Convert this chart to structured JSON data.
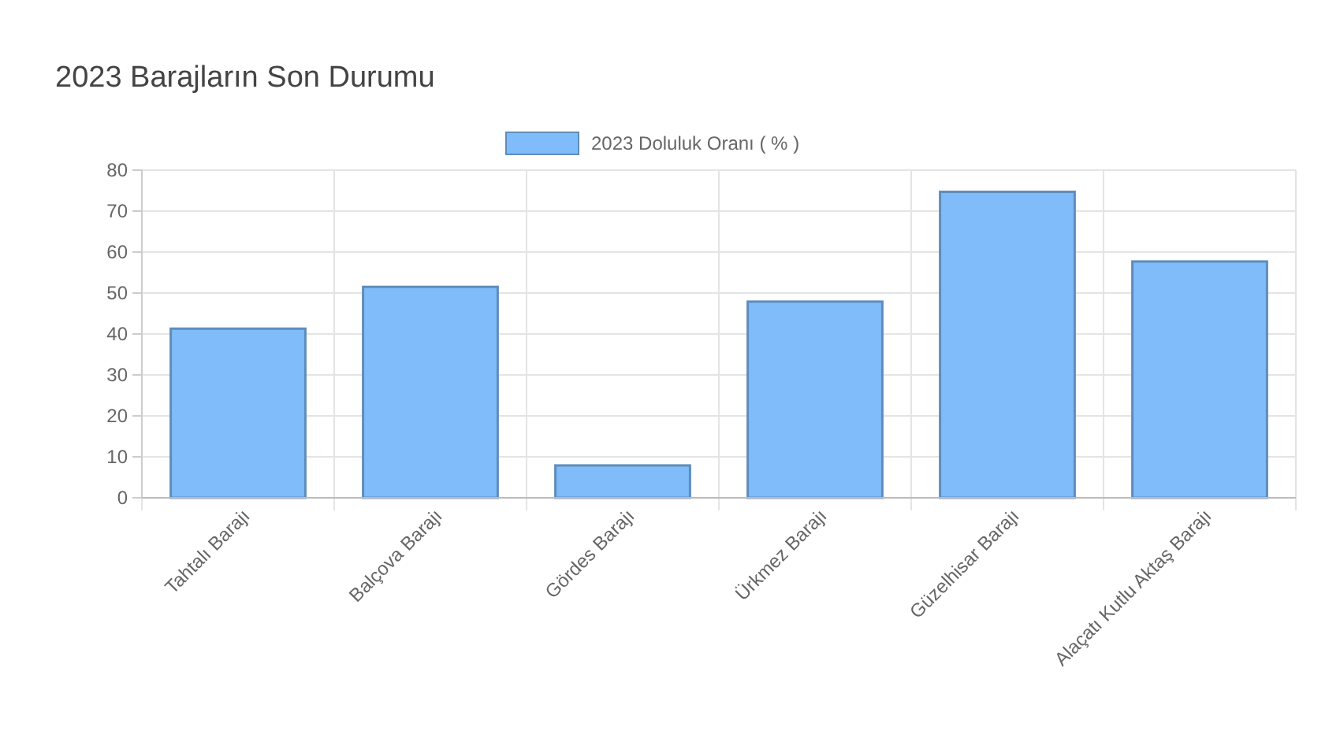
{
  "chart_data": {
    "type": "bar",
    "title": "2023 Barajların Son Durumu",
    "categories": [
      "Tahtalı Barajı",
      "Balçova Barajı",
      "Gördes Barajı",
      "Ürkmez Barajı",
      "Güzelhisar Barajı",
      "Alaçatı Kutlu Aktaş Barajı"
    ],
    "series": [
      {
        "name": "2023 Doluluk Oranı ( % )",
        "color": "#7fbcf9",
        "values": [
          41.3,
          51.5,
          7.9,
          47.9,
          74.7,
          57.7
        ]
      }
    ],
    "ylim": [
      0,
      80
    ],
    "yticks": [
      0,
      10,
      20,
      30,
      40,
      50,
      60,
      70,
      80
    ],
    "grid": true,
    "legend": "top"
  }
}
